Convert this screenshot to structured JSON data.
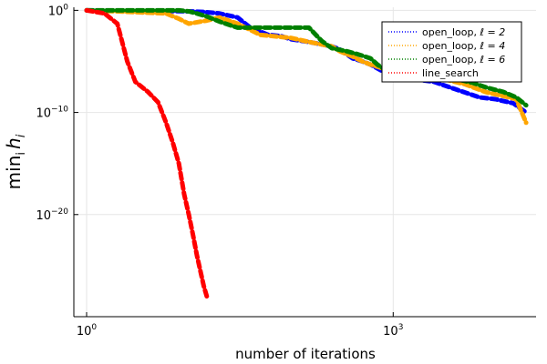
{
  "chart_data": {
    "type": "line",
    "xlabel": "number of iterations",
    "ylabel_parts": {
      "base": "min",
      "sub": "i",
      "var": "h",
      "var_sub": "i"
    },
    "xscale": "log10",
    "yscale": "log10",
    "xlim": [
      0.75,
      25000
    ],
    "ylim": [
      1e-30,
      2
    ],
    "xticks": [
      {
        "value": 1,
        "base": "10",
        "exp": "0"
      },
      {
        "value": 1000,
        "base": "10",
        "exp": "3"
      }
    ],
    "yticks": [
      {
        "value": 1,
        "base": "10",
        "exp": "0"
      },
      {
        "value": 1e-10,
        "base": "10",
        "exp": "−10"
      },
      {
        "value": 1e-20,
        "base": "10",
        "exp": "−20"
      }
    ],
    "grid": true,
    "legend_position": "top-right",
    "series": [
      {
        "name_prefix": "open_loop, ",
        "name_math": "ℓ = 2",
        "color": "#0000ff",
        "points": [
          [
            1,
            1
          ],
          [
            2,
            0.9
          ],
          [
            5,
            0.9
          ],
          [
            10,
            0.8
          ],
          [
            14,
            0.7
          ],
          [
            20,
            0.5
          ],
          [
            30,
            0.2
          ],
          [
            40,
            0.02
          ],
          [
            60,
            0.004
          ],
          [
            80,
            0.003
          ],
          [
            100,
            0.0015
          ],
          [
            150,
            0.0008
          ],
          [
            250,
            0.0003
          ],
          [
            300,
            0.00015
          ],
          [
            350,
            5e-05
          ],
          [
            400,
            2e-05
          ],
          [
            500,
            1e-05
          ],
          [
            600,
            5e-06
          ],
          [
            800,
            1e-06
          ],
          [
            1200,
            3e-07
          ],
          [
            1500,
            2e-07
          ],
          [
            2500,
            1e-07
          ],
          [
            4000,
            2e-08
          ],
          [
            7000,
            3e-09
          ],
          [
            10000,
            2e-09
          ],
          [
            15000,
            8e-10
          ],
          [
            20000,
            1e-10
          ]
        ]
      },
      {
        "name_prefix": "open_loop, ",
        "name_math": "ℓ = 4",
        "color": "#ffa500",
        "points": [
          [
            1,
            1
          ],
          [
            2,
            0.8
          ],
          [
            6,
            0.5
          ],
          [
            8,
            0.15
          ],
          [
            10,
            0.05
          ],
          [
            15,
            0.1
          ],
          [
            20,
            0.2
          ],
          [
            30,
            0.05
          ],
          [
            50,
            0.004
          ],
          [
            100,
            0.002
          ],
          [
            150,
            0.0008
          ],
          [
            250,
            0.0003
          ],
          [
            300,
            0.0001
          ],
          [
            400,
            3e-05
          ],
          [
            500,
            1e-05
          ],
          [
            600,
            5e-06
          ],
          [
            800,
            2e-06
          ],
          [
            1200,
            8e-07
          ],
          [
            2000,
            5e-07
          ],
          [
            3000,
            2e-07
          ],
          [
            5000,
            6e-08
          ],
          [
            8000,
            1e-08
          ],
          [
            12000,
            4e-09
          ],
          [
            16000,
            2e-09
          ],
          [
            20000,
            1e-11
          ]
        ]
      },
      {
        "name_prefix": "open_loop, ",
        "name_math": "ℓ = 6",
        "color": "#008000",
        "points": [
          [
            1,
            1
          ],
          [
            2,
            1
          ],
          [
            4,
            1
          ],
          [
            8,
            1
          ],
          [
            10,
            0.8
          ],
          [
            12,
            0.5
          ],
          [
            15,
            0.25
          ],
          [
            20,
            0.08
          ],
          [
            30,
            0.02
          ],
          [
            50,
            0.02
          ],
          [
            80,
            0.02
          ],
          [
            120,
            0.02
          ],
          [
            150,
            0.02
          ],
          [
            200,
            0.001
          ],
          [
            250,
            0.0002
          ],
          [
            350,
            0.0001
          ],
          [
            450,
            5e-05
          ],
          [
            600,
            2e-05
          ],
          [
            700,
            5e-06
          ],
          [
            800,
            2e-06
          ],
          [
            1000,
            1e-06
          ],
          [
            1500,
            9e-07
          ],
          [
            2500,
            7e-07
          ],
          [
            4000,
            2e-07
          ],
          [
            6000,
            8e-08
          ],
          [
            8000,
            3e-08
          ],
          [
            12000,
            1e-08
          ],
          [
            16000,
            3e-09
          ],
          [
            20000,
            5e-10
          ]
        ]
      },
      {
        "name_prefix": "line_search",
        "name_math": "",
        "color": "#ff0000",
        "points": [
          [
            1,
            1
          ],
          [
            1.5,
            0.5
          ],
          [
            2,
            0.05
          ],
          [
            2.5,
            1e-05
          ],
          [
            3,
            1e-07
          ],
          [
            4,
            1e-08
          ],
          [
            5,
            1e-09
          ],
          [
            6,
            1e-11
          ],
          [
            7,
            1e-13
          ],
          [
            8,
            1e-15
          ],
          [
            9,
            1e-18
          ],
          [
            10,
            1e-20
          ],
          [
            11,
            1e-22
          ],
          [
            12,
            1e-24
          ],
          [
            14,
            1e-27
          ],
          [
            15,
            1e-28
          ]
        ]
      }
    ]
  }
}
